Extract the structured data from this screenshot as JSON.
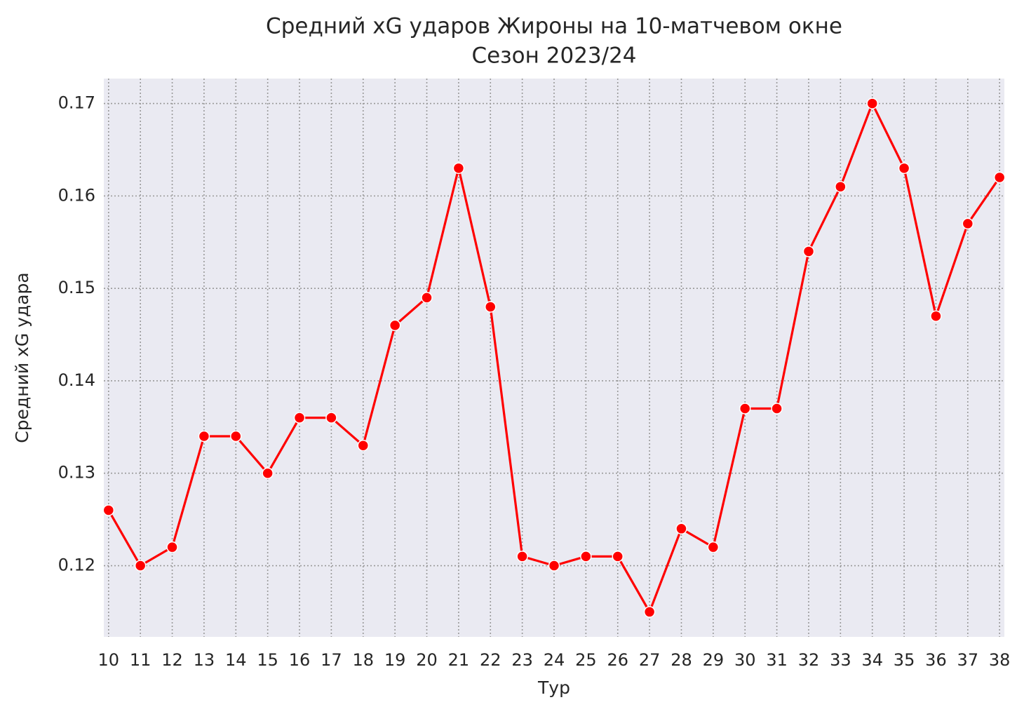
{
  "chart_data": {
    "type": "line",
    "title": "Средний xG ударов Жироны на 10-матчевом окне",
    "subtitle": "Сезон 2023/24",
    "x_label": "Тур",
    "y_label": "Средний xG удара",
    "x": [
      10,
      11,
      12,
      13,
      14,
      15,
      16,
      17,
      18,
      19,
      20,
      21,
      22,
      23,
      24,
      25,
      26,
      27,
      28,
      29,
      30,
      31,
      32,
      33,
      34,
      35,
      36,
      37,
      38
    ],
    "series": [
      {
        "color": "#ff0000",
        "values": [
          0.126,
          0.12,
          0.122,
          0.134,
          0.134,
          0.13,
          0.136,
          0.136,
          0.133,
          0.146,
          0.149,
          0.163,
          0.148,
          0.121,
          0.12,
          0.121,
          0.121,
          0.115,
          0.124,
          0.122,
          0.137,
          0.137,
          0.154,
          0.161,
          0.17,
          0.163,
          0.147,
          0.157,
          0.162
        ]
      }
    ],
    "xlim": [
      9.85,
      38.15
    ],
    "ylim": [
      0.1123,
      0.1727
    ],
    "xticks": [
      10,
      11,
      12,
      13,
      14,
      15,
      16,
      17,
      18,
      19,
      20,
      21,
      22,
      23,
      24,
      25,
      26,
      27,
      28,
      29,
      30,
      31,
      32,
      33,
      34,
      35,
      36,
      37,
      38
    ],
    "yticks": [
      0.12,
      0.13,
      0.14,
      0.15,
      0.16,
      0.17
    ],
    "grid": true
  }
}
